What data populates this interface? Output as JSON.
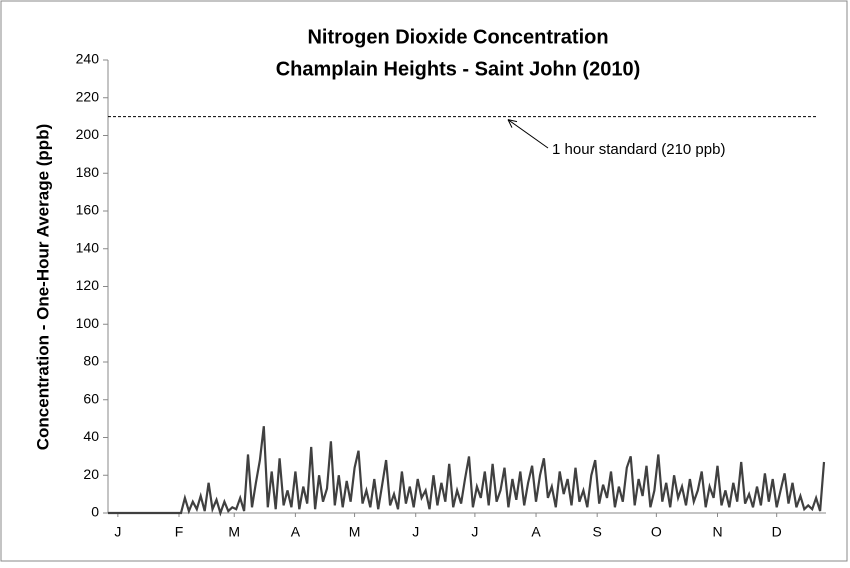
{
  "chart_data": {
    "type": "line",
    "title": "Nitrogen Dioxide Concentration",
    "subtitle": "Champlain Heights - Saint John (2010)",
    "y_label": "Concentration - One-Hour Average (ppb)",
    "annotation": "1 hour standard (210 ppb)",
    "reference_value": 210,
    "xlim": [
      -4,
      360
    ],
    "xticks": [
      {
        "value": 1,
        "label": "J"
      },
      {
        "value": 32,
        "label": "F"
      },
      {
        "value": 60,
        "label": "M"
      },
      {
        "value": 91,
        "label": "A"
      },
      {
        "value": 121,
        "label": "M"
      },
      {
        "value": 152,
        "label": "J"
      },
      {
        "value": 182,
        "label": "J"
      },
      {
        "value": 213,
        "label": "A"
      },
      {
        "value": 244,
        "label": "S"
      },
      {
        "value": 274,
        "label": "O"
      },
      {
        "value": 305,
        "label": "N"
      },
      {
        "value": 335,
        "label": "D"
      }
    ],
    "ylim": [
      0,
      240
    ],
    "yticks": [
      0,
      20,
      40,
      60,
      80,
      100,
      120,
      140,
      160,
      180,
      200,
      220,
      240
    ],
    "grid": false,
    "x": [
      -4,
      33,
      35,
      37,
      39,
      41,
      43,
      45,
      47,
      49,
      51,
      53,
      55,
      57,
      59,
      61,
      63,
      65,
      67,
      69,
      71,
      73,
      75,
      77,
      79,
      81,
      83,
      85,
      87,
      89,
      91,
      93,
      95,
      97,
      99,
      101,
      103,
      105,
      107,
      109,
      111,
      113,
      115,
      117,
      119,
      121,
      123,
      125,
      127,
      129,
      131,
      133,
      135,
      137,
      139,
      141,
      143,
      145,
      147,
      149,
      151,
      153,
      155,
      157,
      159,
      161,
      163,
      165,
      167,
      169,
      171,
      173,
      175,
      177,
      179,
      181,
      183,
      185,
      187,
      189,
      191,
      193,
      195,
      197,
      199,
      201,
      203,
      205,
      207,
      209,
      211,
      213,
      215,
      217,
      219,
      221,
      223,
      225,
      227,
      229,
      231,
      233,
      235,
      237,
      239,
      241,
      243,
      245,
      247,
      249,
      251,
      253,
      255,
      257,
      259,
      261,
      263,
      265,
      267,
      269,
      271,
      273,
      275,
      277,
      279,
      281,
      283,
      285,
      287,
      289,
      291,
      293,
      295,
      297,
      299,
      301,
      303,
      305,
      307,
      309,
      311,
      313,
      315,
      317,
      319,
      321,
      323,
      325,
      327,
      329,
      331,
      333,
      335,
      337,
      339,
      341,
      343,
      345,
      347,
      349,
      351,
      353,
      355,
      357,
      359
    ],
    "series": [
      {
        "name": "NO2",
        "color": "#404040",
        "values": [
          0,
          0,
          8,
          1,
          6,
          2,
          9,
          1,
          16,
          2,
          7,
          0,
          6,
          1,
          3,
          2,
          8,
          1,
          31,
          3,
          16,
          28,
          46,
          3,
          22,
          2,
          29,
          4,
          12,
          3,
          22,
          2,
          14,
          5,
          35,
          2,
          20,
          6,
          13,
          38,
          4,
          20,
          3,
          17,
          6,
          24,
          33,
          5,
          12,
          3,
          18,
          2,
          15,
          28,
          4,
          10,
          2,
          22,
          5,
          14,
          3,
          18,
          8,
          12,
          2,
          20,
          4,
          16,
          6,
          26,
          3,
          12,
          5,
          18,
          30,
          3,
          14,
          8,
          22,
          4,
          26,
          6,
          12,
          24,
          3,
          18,
          7,
          22,
          4,
          16,
          25,
          6,
          20,
          29,
          8,
          14,
          3,
          22,
          10,
          18,
          4,
          24,
          6,
          12,
          3,
          20,
          28,
          5,
          15,
          8,
          22,
          3,
          14,
          6,
          24,
          30,
          4,
          18,
          9,
          25,
          3,
          12,
          31,
          6,
          16,
          3,
          20,
          8,
          14,
          4,
          18,
          6,
          12,
          22,
          3,
          14,
          8,
          25,
          4,
          12,
          3,
          16,
          6,
          27,
          5,
          10,
          3,
          14,
          4,
          21,
          6,
          18,
          3,
          12,
          21,
          5,
          16,
          3,
          9,
          2,
          4,
          2,
          8,
          1,
          27
        ]
      }
    ]
  }
}
